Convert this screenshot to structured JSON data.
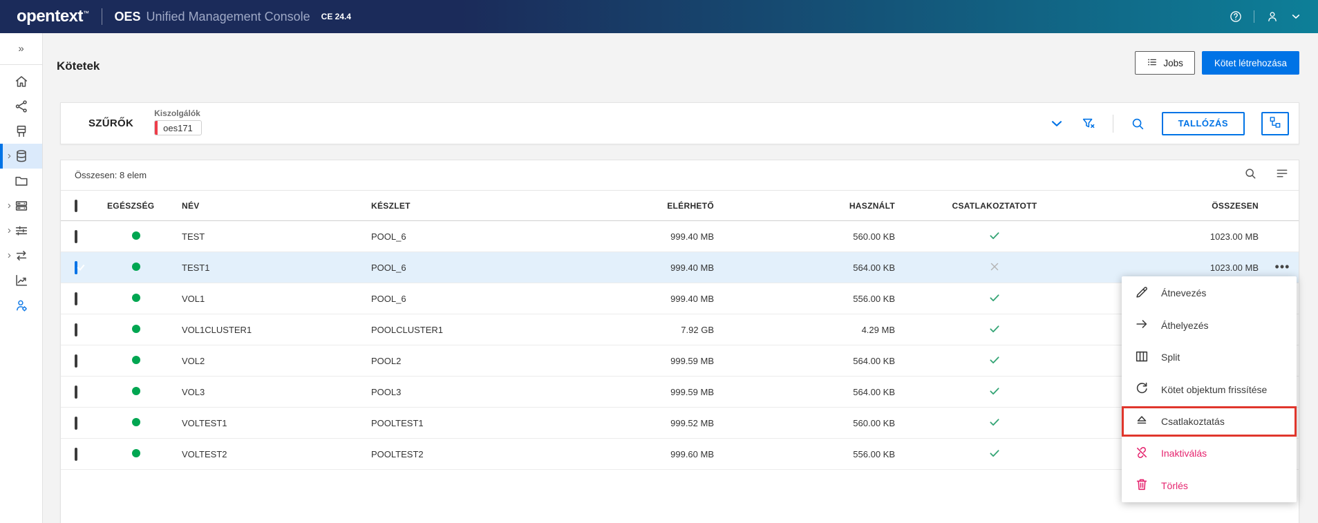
{
  "topbar": {
    "logo": "opentext",
    "logo_tm": "™",
    "product": "OES",
    "product_suffix": "Unified Management Console",
    "version": "CE 24.4",
    "icons": [
      "help-icon",
      "user-icon",
      "chevron-down-icon"
    ],
    "colors": {
      "gradient_start": "#1b2b5a",
      "gradient_end": "#0d7f98"
    }
  },
  "sidebar": {
    "expand_glyph": "»",
    "items": [
      {
        "name": "home",
        "icon": "home-icon",
        "expandable": false,
        "active": false,
        "blue": false
      },
      {
        "name": "share",
        "icon": "share-icon",
        "expandable": false,
        "active": false,
        "blue": false
      },
      {
        "name": "servers",
        "icon": "server-icon",
        "expandable": false,
        "active": false,
        "blue": false
      },
      {
        "name": "storage",
        "icon": "database-icon",
        "expandable": true,
        "active": true,
        "blue": false
      },
      {
        "name": "files",
        "icon": "folder-icon",
        "expandable": false,
        "active": false,
        "blue": false
      },
      {
        "name": "cluster",
        "icon": "rack-icon",
        "expandable": true,
        "active": false,
        "blue": false
      },
      {
        "name": "settings",
        "icon": "sliders-icon",
        "expandable": true,
        "active": false,
        "blue": false
      },
      {
        "name": "migration",
        "icon": "transfer-icon",
        "expandable": true,
        "active": false,
        "blue": false
      },
      {
        "name": "reports",
        "icon": "chart-icon",
        "expandable": false,
        "active": false,
        "blue": false
      },
      {
        "name": "users",
        "icon": "user-gear-icon",
        "expandable": false,
        "active": false,
        "blue": true
      }
    ]
  },
  "page": {
    "title": "Kötetek",
    "jobs_button": "Jobs",
    "create_button": "Kötet létrehozása",
    "accent_color": "#0073e6"
  },
  "filters": {
    "label": "SZŰRŐK",
    "group_label": "Kiszolgálók",
    "chip": "oes171",
    "chip_bar_color": "#ee3d4a",
    "browse_button": "TALLÓZÁS",
    "icons": [
      "chevron-down-icon",
      "filter-clear-icon",
      "search-icon",
      "tree-view-icon"
    ]
  },
  "table": {
    "summary": "Összesen: 8 elem",
    "toolbar_icons": [
      "search-icon",
      "view-options-icon"
    ],
    "columns": [
      "EGÉSZSÉG",
      "NÉV",
      "KÉSZLET",
      "ELÉRHETŐ",
      "HASZNÁLT",
      "CSATLAKOZTATOTT",
      "ÖSSZESEN"
    ],
    "health_color": "#00a651",
    "mounted_check_color": "#33a474",
    "unmounted_x_color": "#b5b5b5",
    "rows": [
      {
        "name": "TEST",
        "pool": "POOL_6",
        "available": "999.40 MB",
        "used": "560.00 KB",
        "mounted": true,
        "total": "1023.00 MB",
        "checked": false,
        "selected": false,
        "show_more": false
      },
      {
        "name": "TEST1",
        "pool": "POOL_6",
        "available": "999.40 MB",
        "used": "564.00 KB",
        "mounted": false,
        "total": "1023.00 MB",
        "checked": true,
        "selected": true,
        "show_more": true
      },
      {
        "name": "VOL1",
        "pool": "POOL_6",
        "available": "999.40 MB",
        "used": "556.00 KB",
        "mounted": true,
        "total": "",
        "checked": false,
        "selected": false,
        "show_more": false
      },
      {
        "name": "VOL1CLUSTER1",
        "pool": "POOLCLUSTER1",
        "available": "7.92 GB",
        "used": "4.29 MB",
        "mounted": true,
        "total": "",
        "checked": false,
        "selected": false,
        "show_more": false
      },
      {
        "name": "VOL2",
        "pool": "POOL2",
        "available": "999.59 MB",
        "used": "564.00 KB",
        "mounted": true,
        "total": "",
        "checked": false,
        "selected": false,
        "show_more": false
      },
      {
        "name": "VOL3",
        "pool": "POOL3",
        "available": "999.59 MB",
        "used": "564.00 KB",
        "mounted": true,
        "total": "",
        "checked": false,
        "selected": false,
        "show_more": false
      },
      {
        "name": "VOLTEST1",
        "pool": "POOLTEST1",
        "available": "999.52 MB",
        "used": "560.00 KB",
        "mounted": true,
        "total": "",
        "checked": false,
        "selected": false,
        "show_more": false
      },
      {
        "name": "VOLTEST2",
        "pool": "POOLTEST2",
        "available": "999.60 MB",
        "used": "556.00 KB",
        "mounted": true,
        "total": "",
        "checked": false,
        "selected": false,
        "show_more": false
      }
    ]
  },
  "context_menu": {
    "highlight_color": "#e0362c",
    "danger_color": "#e5246e",
    "items": [
      {
        "label": "Átnevezés",
        "icon": "pencil-icon",
        "danger": false,
        "highlighted": false
      },
      {
        "label": "Áthelyezés",
        "icon": "arrow-right-icon",
        "danger": false,
        "highlighted": false
      },
      {
        "label": "Split",
        "icon": "split-icon",
        "danger": false,
        "highlighted": false
      },
      {
        "label": "Kötet objektum frissítése",
        "icon": "refresh-icon",
        "danger": false,
        "highlighted": false
      },
      {
        "label": "Csatlakoztatás",
        "icon": "eject-icon",
        "danger": false,
        "highlighted": true
      },
      {
        "label": "Inaktiválás",
        "icon": "unlink-icon",
        "danger": true,
        "highlighted": false
      },
      {
        "label": "Törlés",
        "icon": "trash-icon",
        "danger": true,
        "highlighted": false
      }
    ]
  }
}
